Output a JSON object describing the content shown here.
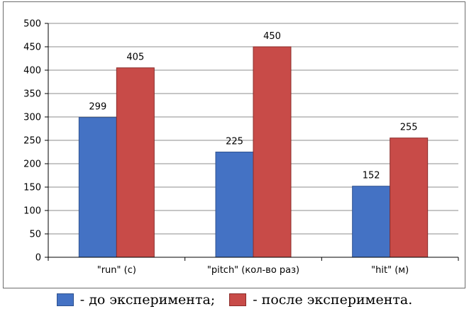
{
  "chart_data": {
    "type": "bar",
    "categories": [
      "\"run\" (c)",
      "\"pitch\" (кол-во раз)",
      "\"hit\" (м)"
    ],
    "series": [
      {
        "name": "- до эксперимента;",
        "color": "#4472c4",
        "values": [
          299,
          225,
          152
        ]
      },
      {
        "name": "- после эксперимента.",
        "color": "#c84b48",
        "values": [
          405,
          450,
          255
        ]
      }
    ],
    "ylim": [
      0,
      500
    ],
    "yticks": [
      0,
      50,
      100,
      150,
      200,
      250,
      300,
      350,
      400,
      450,
      500
    ],
    "grid": true,
    "legend_position": "bottom",
    "title": "",
    "xlabel": "",
    "ylabel": ""
  },
  "legend": {
    "before_label": "- до эксперимента;",
    "after_label": "- после эксперимента."
  }
}
